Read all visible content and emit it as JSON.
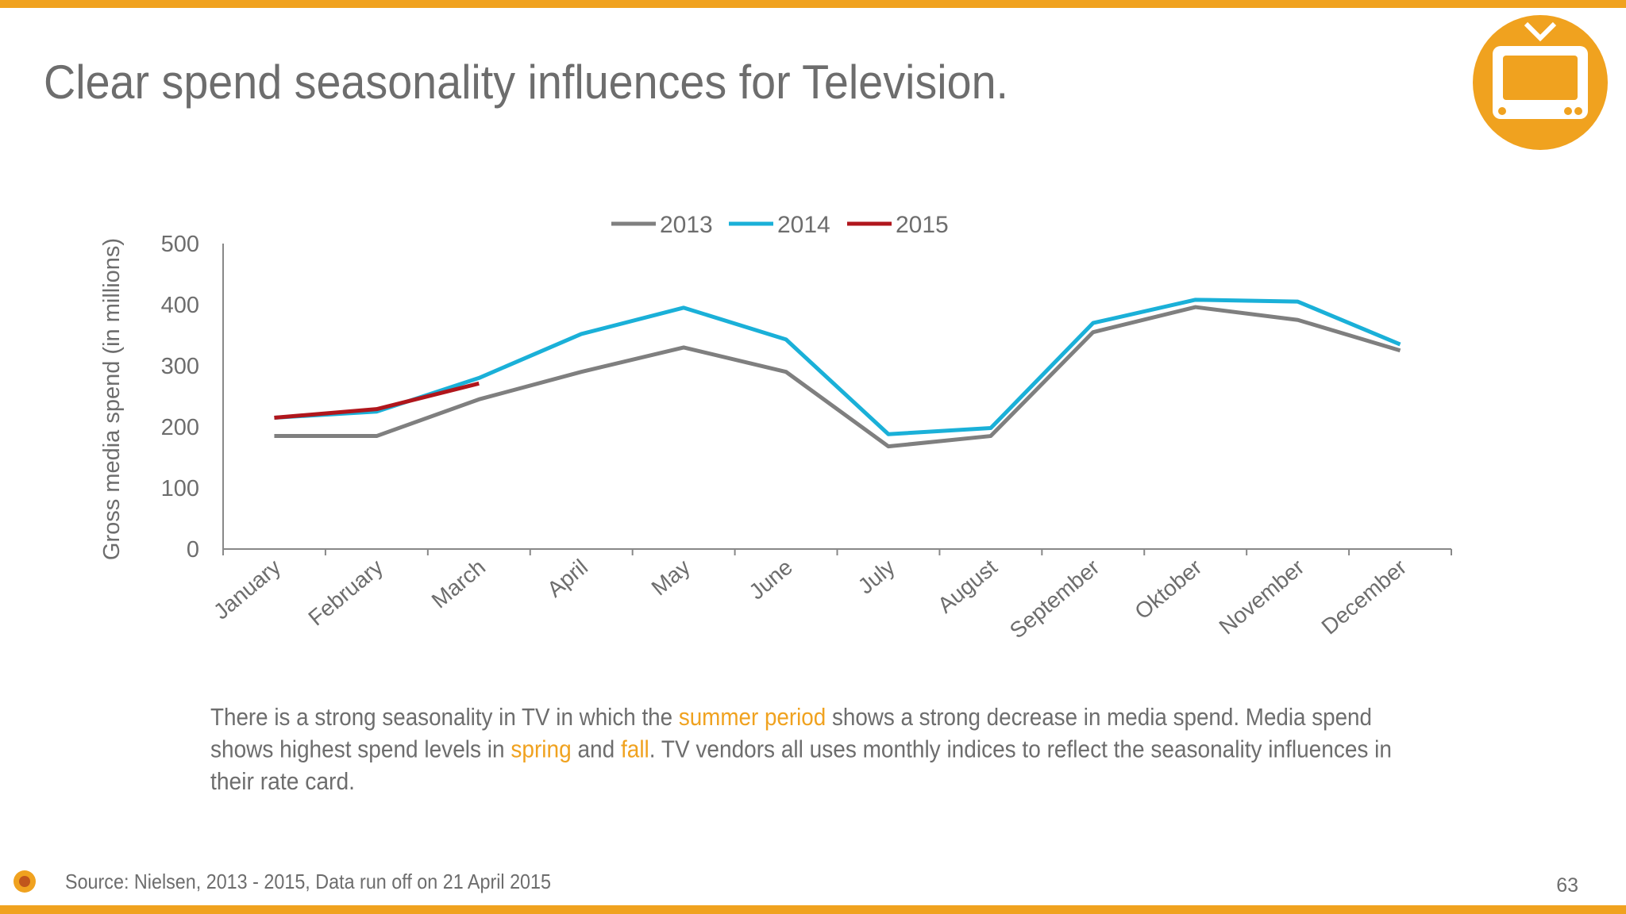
{
  "chart_data": {
    "type": "line",
    "title": "Clear spend seasonality influences for Television.",
    "y_label": "Gross media spend (in millions)",
    "categories": [
      "January",
      "February",
      "March",
      "April",
      "May",
      "June",
      "July",
      "August",
      "September",
      "Oktober",
      "November",
      "December"
    ],
    "series": [
      {
        "name": "2013",
        "color": "#7f7f7f",
        "values": [
          185,
          185,
          245,
          290,
          330,
          290,
          168,
          185,
          355,
          396,
          375,
          325
        ]
      },
      {
        "name": "2014",
        "color": "#1ab0d8",
        "values": [
          215,
          225,
          280,
          352,
          395,
          343,
          188,
          198,
          370,
          408,
          405,
          335
        ]
      },
      {
        "name": "2015",
        "color": "#b0161c",
        "values": [
          215,
          229,
          271,
          null,
          null,
          null,
          null,
          null,
          null,
          null,
          null,
          null
        ]
      }
    ],
    "ylim": [
      0,
      500
    ],
    "yticks": [
      0,
      100,
      200,
      300,
      400,
      500
    ],
    "grid": false,
    "legend": "top",
    "body": [
      [
        {
          "text": "There is a strong seasonality in TV in which the "
        },
        {
          "text": "summer period",
          "color": "#f0a21f"
        },
        {
          "text": " shows a strong decrease in media spend. Media spend"
        }
      ],
      [
        {
          "text": "shows highest spend levels in "
        },
        {
          "text": "spring",
          "color": "#f0a21f"
        },
        {
          "text": " and "
        },
        {
          "text": "fall",
          "color": "#f0a21f"
        },
        {
          "text": ". TV vendors all uses monthly indices to reflect the seasonality influences in"
        }
      ],
      [
        {
          "text": "their rate card."
        }
      ]
    ],
    "source": "Source: Nielsen, 2013 - 2015, Data run off on 21 April 2015",
    "page_number": "63"
  }
}
